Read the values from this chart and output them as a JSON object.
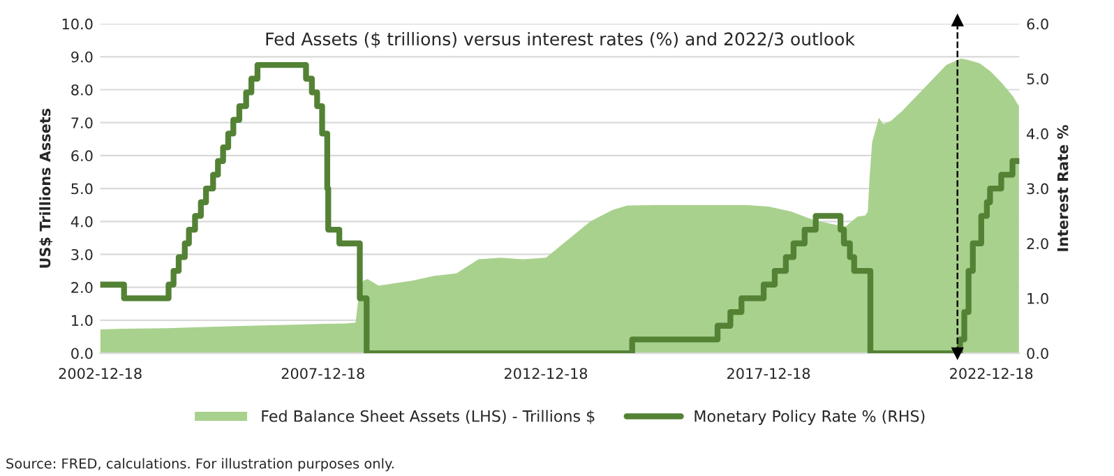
{
  "chart_data": {
    "type": "area",
    "title": "Fed Assets ($ trillions) versus interest rates (%) and 2022/3 outlook",
    "ylabel": "US$ Trillions Assets",
    "y2label": "Interest Rate %",
    "xlim": [
      "2002-12-18",
      "2023-08-05"
    ],
    "xticks": [
      "2002-12-18",
      "2007-12-18",
      "2012-12-18",
      "2017-12-18",
      "2022-12-18"
    ],
    "ylim": [
      0,
      10
    ],
    "yticks": [
      {
        "value": 0,
        "label": "0.0"
      },
      {
        "value": 1,
        "label": "1.0"
      },
      {
        "value": 2,
        "label": "2.0"
      },
      {
        "value": 3,
        "label": "3.0"
      },
      {
        "value": 4,
        "label": "4.0"
      },
      {
        "value": 5,
        "label": "5.0"
      },
      {
        "value": 6,
        "label": "6.0"
      },
      {
        "value": 7,
        "label": "7.0"
      },
      {
        "value": 8,
        "label": "8.0"
      },
      {
        "value": 9,
        "label": "9.0"
      },
      {
        "value": 10,
        "label": "10.0"
      }
    ],
    "y2lim": [
      0,
      6
    ],
    "y2ticks": [
      {
        "value": 0,
        "label": "0.0"
      },
      {
        "value": 1,
        "label": "1.0"
      },
      {
        "value": 2,
        "label": "2.0"
      },
      {
        "value": 3,
        "label": "3.0"
      },
      {
        "value": 4,
        "label": "4.0"
      },
      {
        "value": 5,
        "label": "5.0"
      },
      {
        "value": 6,
        "label": "6.0"
      }
    ],
    "grid": "y",
    "legend": "bottom",
    "series": [
      {
        "name": "Fed Balance Sheet Assets (LHS) - Trillions $",
        "color": "#a9d18e",
        "x": [
          "2002-12-18",
          "2003-06-18",
          "2004-06-16",
          "2005-06-15",
          "2006-06-14",
          "2007-06-13",
          "2007-12-19",
          "2008-06-18",
          "2008-09-10",
          "2008-10-08",
          "2008-11-12",
          "2008-12-17",
          "2009-03-18",
          "2009-06-17",
          "2009-09-16",
          "2009-12-16",
          "2010-06-16",
          "2010-12-15",
          "2011-06-15",
          "2011-12-14",
          "2012-06-13",
          "2012-12-19",
          "2013-06-19",
          "2013-12-18",
          "2014-06-18",
          "2014-10-15",
          "2015-06-17",
          "2016-06-15",
          "2017-06-14",
          "2017-12-20",
          "2018-06-20",
          "2018-12-19",
          "2019-06-19",
          "2019-09-11",
          "2019-12-18",
          "2020-02-19",
          "2020-03-11",
          "2020-03-25",
          "2020-04-15",
          "2020-06-10",
          "2020-07-15",
          "2020-09-16",
          "2020-12-16",
          "2021-06-16",
          "2021-12-15",
          "2022-04-13",
          "2022-06-15",
          "2022-09-14",
          "2022-12-14",
          "2023-03-15",
          "2023-06-14",
          "2023-08-02"
        ],
        "values": [
          0.72,
          0.74,
          0.76,
          0.8,
          0.84,
          0.87,
          0.89,
          0.9,
          0.93,
          1.8,
          2.2,
          2.25,
          2.05,
          2.1,
          2.15,
          2.2,
          2.35,
          2.42,
          2.85,
          2.9,
          2.85,
          2.9,
          3.45,
          4.0,
          4.35,
          4.48,
          4.5,
          4.5,
          4.5,
          4.45,
          4.3,
          4.05,
          3.9,
          3.85,
          4.15,
          4.18,
          4.3,
          5.3,
          6.4,
          7.15,
          6.95,
          7.05,
          7.35,
          8.05,
          8.75,
          8.95,
          8.9,
          8.8,
          8.55,
          8.2,
          7.8,
          7.5
        ]
      },
      {
        "name": "Monetary Policy Rate % (RHS)",
        "type": "step",
        "axis": "y2",
        "color": "#548235",
        "x": [
          "2002-12-18",
          "2003-07-01",
          "2004-06-30",
          "2004-08-10",
          "2004-09-21",
          "2004-11-10",
          "2004-12-14",
          "2005-02-02",
          "2005-03-22",
          "2005-05-03",
          "2005-06-30",
          "2005-08-09",
          "2005-09-20",
          "2005-11-01",
          "2005-12-13",
          "2006-01-31",
          "2006-03-28",
          "2006-05-10",
          "2006-06-29",
          "2007-08-01",
          "2007-09-18",
          "2007-10-31",
          "2007-12-11",
          "2008-01-22",
          "2008-01-30",
          "2008-03-18",
          "2008-04-30",
          "2008-10-15",
          "2008-12-10",
          "2014-11-26",
          "2016-10-26",
          "2017-02-08",
          "2017-05-10",
          "2017-11-08",
          "2018-02-07",
          "2018-05-09",
          "2018-07-11",
          "2018-10-10",
          "2019-01-09",
          "2019-07-31",
          "2019-08-28",
          "2019-10-16",
          "2019-11-20",
          "2020-04-01",
          "2022-04-06",
          "2022-05-11",
          "2022-06-15",
          "2022-07-20",
          "2022-09-27",
          "2022-11-12",
          "2022-12-08",
          "2023-03-10",
          "2023-06-10",
          "2023-08-05"
        ],
        "values": [
          1.25,
          1.0,
          1.25,
          1.5,
          1.75,
          2.0,
          2.25,
          2.5,
          2.75,
          3.0,
          3.25,
          3.5,
          3.75,
          4.0,
          4.25,
          4.5,
          4.75,
          5.0,
          5.25,
          5.0,
          4.75,
          4.5,
          4.0,
          3.0,
          2.25,
          2.25,
          2.0,
          1.0,
          0.0,
          0.25,
          0.5,
          0.75,
          1.0,
          1.25,
          1.5,
          1.75,
          2.0,
          2.25,
          2.5,
          2.25,
          2.0,
          1.75,
          1.5,
          0.0,
          0.25,
          0.75,
          1.5,
          2.0,
          2.5,
          2.75,
          3.0,
          3.25,
          3.5,
          3.5
        ]
      }
    ],
    "ref_lines": [
      {
        "axis": "x",
        "value": "2022-03-16",
        "color": "#000000",
        "line_style": "dashed"
      }
    ],
    "annotations": [
      "Source: FRED, calculations. For illustration purposes only."
    ]
  }
}
